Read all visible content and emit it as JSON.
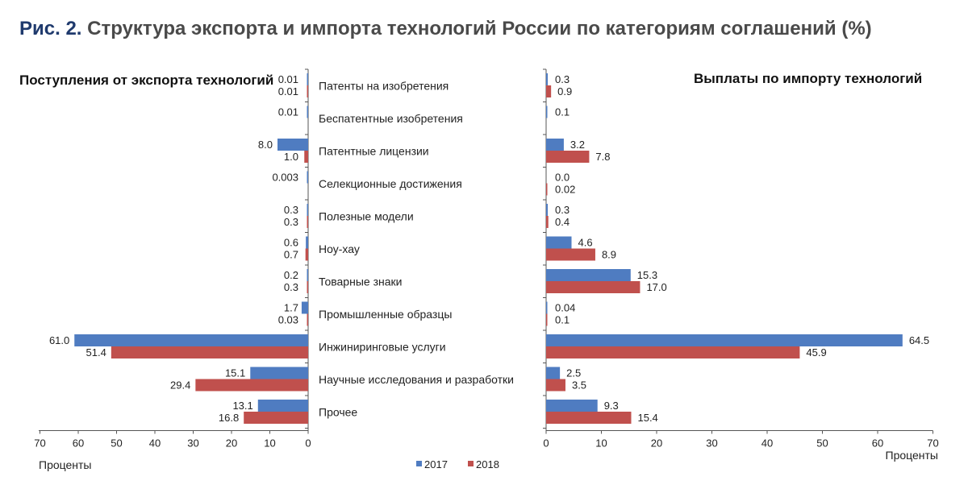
{
  "figure": {
    "label": "Рис. 2.",
    "title": "Структура экспорта и импорта технологий России по категориям соглашений (%)"
  },
  "colors": {
    "2017": "#4f7cc1",
    "2018": "#c0504d",
    "axis": "#555555"
  },
  "chart_data": [
    {
      "type": "bar",
      "orientation": "horizontal",
      "direction": "right-to-left",
      "title": "Поступления от экспорта технологий",
      "xlabel": "Проценты",
      "xlim": [
        0,
        70
      ],
      "xticks": [
        70,
        60,
        50,
        40,
        30,
        20,
        10,
        0
      ],
      "categories": [
        "Патенты на изобретения",
        "Беспатентные изобретения",
        "Патентные лицензии",
        "Селекционные достижения",
        "Полезные модели",
        "Ноу-хау",
        "Товарные знаки",
        "Промышленные образцы",
        "Инжиниринговые услуги",
        "Научные исследования и разработки",
        "Прочее"
      ],
      "series": [
        {
          "name": "2017",
          "values": [
            0.01,
            0.01,
            8.0,
            0.003,
            0.3,
            0.6,
            0.2,
            1.7,
            61.0,
            15.1,
            13.1
          ],
          "labels": [
            "0.01",
            "0.01",
            "8.0",
            "0.003",
            "0.3",
            "0.6",
            "0.2",
            "1.7",
            "61.0",
            "15.1",
            "13.1"
          ]
        },
        {
          "name": "2018",
          "values": [
            0.01,
            null,
            1.0,
            null,
            0.3,
            0.7,
            0.3,
            0.03,
            51.4,
            29.4,
            16.8
          ],
          "labels": [
            "0.01",
            "",
            "1.0",
            "",
            "0.3",
            "0.7",
            "0.3",
            "0.03",
            "51.4",
            "29.4",
            "16.8"
          ]
        }
      ]
    },
    {
      "type": "bar",
      "orientation": "horizontal",
      "direction": "left-to-right",
      "title": "Выплаты по импорту технологий",
      "xlabel": "Проценты",
      "xlim": [
        0,
        70
      ],
      "xticks": [
        0,
        10,
        20,
        30,
        40,
        50,
        60,
        70
      ],
      "categories": [
        "Патенты на изобретения",
        "Беспатентные изобретения",
        "Патентные лицензии",
        "Селекционные достижения",
        "Полезные модели",
        "Ноу-хау",
        "Товарные знаки",
        "Промышленные образцы",
        "Инжиниринговые услуги",
        "Научные исследования и разработки",
        "Прочее"
      ],
      "series": [
        {
          "name": "2017",
          "values": [
            0.3,
            0.1,
            3.2,
            0.0,
            0.3,
            4.6,
            15.3,
            0.04,
            64.5,
            2.5,
            9.3
          ],
          "labels": [
            "0.3",
            "0.1",
            "3.2",
            "0.0",
            "0.3",
            "4.6",
            "15.3",
            "0.04",
            "64.5",
            "2.5",
            "9.3"
          ]
        },
        {
          "name": "2018",
          "values": [
            0.9,
            null,
            7.8,
            0.02,
            0.4,
            8.9,
            17.0,
            0.1,
            45.9,
            3.5,
            15.4
          ],
          "labels": [
            "0.9",
            "",
            "7.8",
            "0.02",
            "0.4",
            "8.9",
            "17.0",
            "0.1",
            "45.9",
            "3.5",
            "15.4"
          ]
        }
      ]
    }
  ],
  "legend": [
    {
      "name": "2017",
      "color": "#4f7cc1"
    },
    {
      "name": "2018",
      "color": "#c0504d"
    }
  ]
}
